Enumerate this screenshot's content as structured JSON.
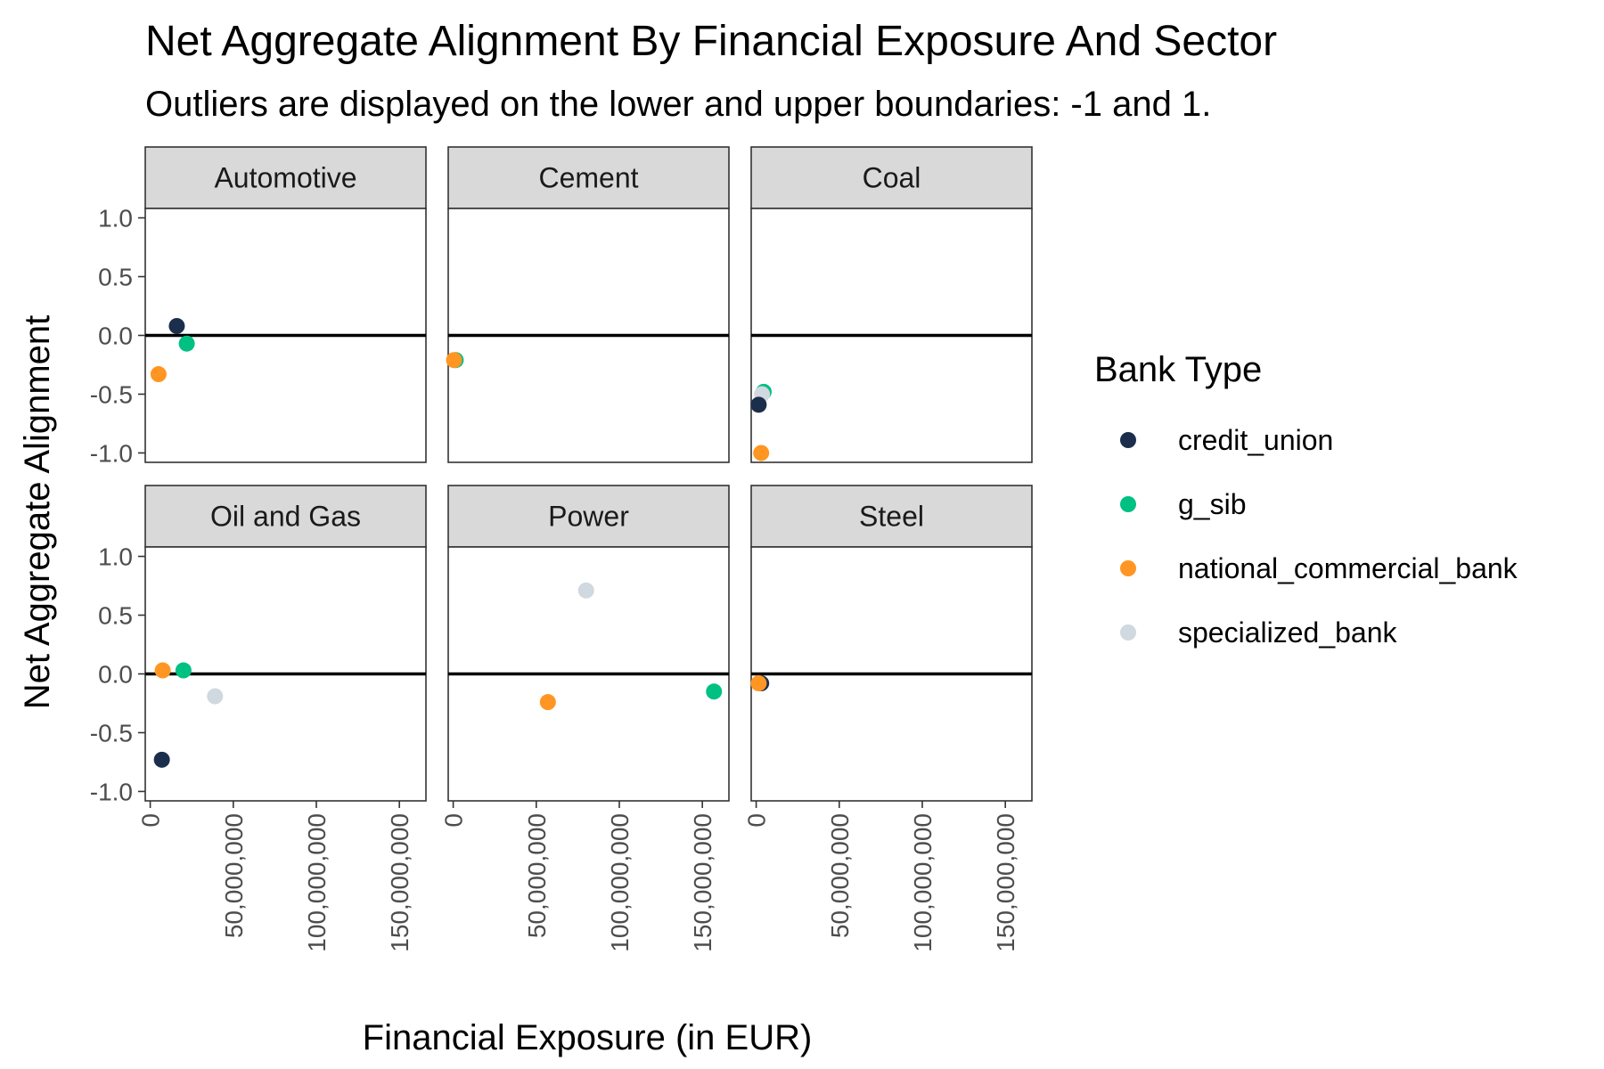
{
  "chart_data": {
    "type": "scatter",
    "title": "Net Aggregate Alignment By Financial Exposure And Sector",
    "subtitle": "Outliers are displayed on the lower and upper boundaries: -1 and 1.",
    "xlabel": "Financial Exposure (in EUR)",
    "ylabel": "Net Aggregate Alignment",
    "xlim": [
      -3000000,
      166000000
    ],
    "ylim": [
      -1.08,
      1.08
    ],
    "x_ticks": [
      0,
      50000000,
      100000000,
      150000000
    ],
    "x_tick_labels": [
      "0",
      "50,000,000",
      "100,000,000",
      "150,000,000"
    ],
    "y_ticks": [
      1.0,
      0.5,
      0.0,
      -0.5,
      -1.0
    ],
    "y_tick_labels": [
      "1.0",
      "0.5",
      "0.0",
      "-0.5",
      "-1.0"
    ],
    "reference_line_y": 0,
    "grid": false,
    "legend": {
      "title": "Bank Type",
      "position": "right",
      "entries": [
        {
          "name": "credit_union",
          "color": "#1b2e4b"
        },
        {
          "name": "g_sib",
          "color": "#00c082"
        },
        {
          "name": "national_commercial_bank",
          "color": "#ff9623"
        },
        {
          "name": "specialized_bank",
          "color": "#d0d8e0"
        }
      ]
    },
    "facets": [
      {
        "name": "Automotive",
        "points": [
          {
            "bank_type": "national_commercial_bank",
            "x": 5000000,
            "y": -0.33
          },
          {
            "bank_type": "credit_union",
            "x": 16000000,
            "y": 0.08
          },
          {
            "bank_type": "g_sib",
            "x": 22000000,
            "y": -0.07
          }
        ]
      },
      {
        "name": "Cement",
        "points": [
          {
            "bank_type": "g_sib",
            "x": 1500000,
            "y": -0.21
          },
          {
            "bank_type": "national_commercial_bank",
            "x": 500000,
            "y": -0.21
          }
        ]
      },
      {
        "name": "Coal",
        "points": [
          {
            "bank_type": "g_sib",
            "x": 4500000,
            "y": -0.48
          },
          {
            "bank_type": "specialized_bank",
            "x": 3500000,
            "y": -0.5
          },
          {
            "bank_type": "credit_union",
            "x": 1500000,
            "y": -0.59
          },
          {
            "bank_type": "national_commercial_bank",
            "x": 3000000,
            "y": -1.0
          }
        ]
      },
      {
        "name": "Oil and Gas",
        "points": [
          {
            "bank_type": "national_commercial_bank",
            "x": 7500000,
            "y": 0.03
          },
          {
            "bank_type": "g_sib",
            "x": 20000000,
            "y": 0.03
          },
          {
            "bank_type": "specialized_bank",
            "x": 39000000,
            "y": -0.19
          },
          {
            "bank_type": "credit_union",
            "x": 7000000,
            "y": -0.73
          }
        ]
      },
      {
        "name": "Power",
        "points": [
          {
            "bank_type": "specialized_bank",
            "x": 80000000,
            "y": 0.71
          },
          {
            "bank_type": "national_commercial_bank",
            "x": 57000000,
            "y": -0.24
          },
          {
            "bank_type": "g_sib",
            "x": 157000000,
            "y": -0.15
          }
        ]
      },
      {
        "name": "Steel",
        "points": [
          {
            "bank_type": "credit_union",
            "x": 3000000,
            "y": -0.08
          },
          {
            "bank_type": "national_commercial_bank",
            "x": 1500000,
            "y": -0.08
          }
        ]
      }
    ]
  }
}
